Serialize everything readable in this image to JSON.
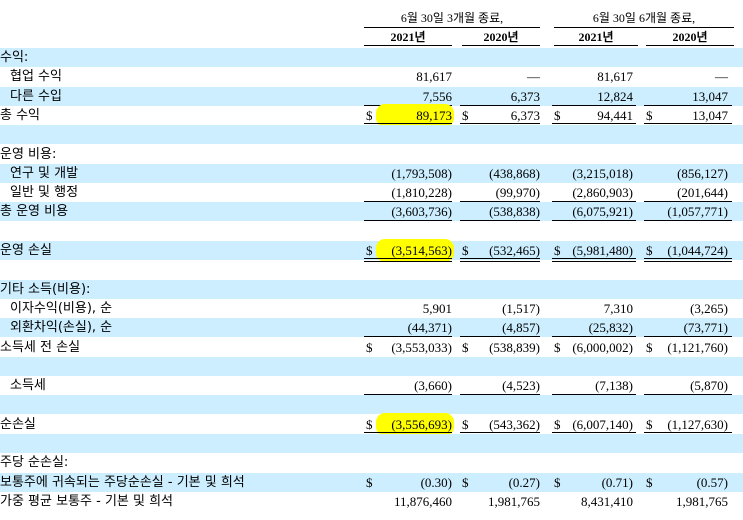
{
  "header": {
    "three_month": "6월 30일 3개월 종료,",
    "six_month": "6월 30일 6개월 종료,",
    "years": [
      "2021년",
      "2020년",
      "2021년",
      "2020년"
    ]
  },
  "rows": [
    {
      "label": "수익:",
      "indent": 0,
      "shade": true,
      "vals": [
        "",
        "",
        "",
        ""
      ],
      "dollar": false
    },
    {
      "label": "협업 수익",
      "indent": 1,
      "shade": false,
      "vals": [
        "81,617",
        "—",
        "81,617",
        "—"
      ],
      "dollar": false
    },
    {
      "label": "다른 수입",
      "indent": 1,
      "shade": true,
      "vals": [
        "7,556",
        "6,373",
        "12,824",
        "13,047"
      ],
      "dollar": false,
      "under": true
    },
    {
      "label": "총 수익",
      "indent": 0,
      "shade": false,
      "vals": [
        "89,173",
        "6,373",
        "94,441",
        "13,047"
      ],
      "dollar": true,
      "dunder": true,
      "highlight": 0
    },
    {
      "label": "",
      "indent": 0,
      "shade": true,
      "vals": [
        "",
        "",
        "",
        ""
      ],
      "dollar": false
    },
    {
      "label": "운영 비용:",
      "indent": 0,
      "shade": false,
      "vals": [
        "",
        "",
        "",
        ""
      ],
      "dollar": false
    },
    {
      "label": "연구 및 개발",
      "indent": 1,
      "shade": true,
      "vals": [
        "(1,793,508)",
        "(438,868)",
        "(3,215,018)",
        "(856,127)"
      ],
      "dollar": false
    },
    {
      "label": "일반 및 행정",
      "indent": 1,
      "shade": false,
      "vals": [
        "(1,810,228)",
        "(99,970)",
        "(2,860,903)",
        "(201,644)"
      ],
      "dollar": false,
      "under": true
    },
    {
      "label": "총 운영 비용",
      "indent": 0,
      "shade": true,
      "vals": [
        "(3,603,736)",
        "(538,838)",
        "(6,075,921)",
        "(1,057,771)"
      ],
      "dollar": false,
      "under": true
    },
    {
      "label": "",
      "indent": 0,
      "shade": false,
      "vals": [
        "",
        "",
        "",
        ""
      ],
      "dollar": false
    },
    {
      "label": "운영 손실",
      "indent": 0,
      "shade": true,
      "vals": [
        "(3,514,563)",
        "(532,465)",
        "(5,981,480)",
        "(1,044,724)"
      ],
      "dollar": true,
      "dunder": true,
      "highlight": 0
    },
    {
      "label": "",
      "indent": 0,
      "shade": false,
      "vals": [
        "",
        "",
        "",
        ""
      ],
      "dollar": false
    },
    {
      "label": "기타 소득(비용):",
      "indent": 0,
      "shade": true,
      "vals": [
        "",
        "",
        "",
        ""
      ],
      "dollar": false
    },
    {
      "label": "이자수익(비용), 순",
      "indent": 1,
      "shade": false,
      "vals": [
        "5,901",
        "(1,517)",
        "7,310",
        "(3,265)"
      ],
      "dollar": false
    },
    {
      "label": "외환차익(손실), 순",
      "indent": 1,
      "shade": true,
      "vals": [
        "(44,371)",
        "(4,857)",
        "(25,832)",
        "(73,771)"
      ],
      "dollar": false,
      "under": true
    },
    {
      "label": "소득세 전 손실",
      "indent": 0,
      "shade": false,
      "vals": [
        "(3,553,033)",
        "(538,839)",
        "(6,000,002)",
        "(1,121,760)"
      ],
      "dollar": true
    },
    {
      "label": "",
      "indent": 0,
      "shade": true,
      "vals": [
        "",
        "",
        "",
        ""
      ],
      "dollar": false
    },
    {
      "label": "소득세",
      "indent": 1,
      "shade": false,
      "vals": [
        "(3,660)",
        "(4,523)",
        "(7,138)",
        "(5,870)"
      ],
      "dollar": false,
      "under": true
    },
    {
      "label": "",
      "indent": 0,
      "shade": true,
      "vals": [
        "",
        "",
        "",
        ""
      ],
      "dollar": false
    },
    {
      "label": "순손실",
      "indent": 0,
      "shade": false,
      "vals": [
        "(3,556,693)",
        "(543,362)",
        "(6,007,140)",
        "(1,127,630)"
      ],
      "dollar": true,
      "dunder": true,
      "highlight": 0
    },
    {
      "label": "",
      "indent": 0,
      "shade": true,
      "vals": [
        "",
        "",
        "",
        ""
      ],
      "dollar": false
    },
    {
      "label": "주당 순손실:",
      "indent": 0,
      "shade": false,
      "vals": [
        "",
        "",
        "",
        ""
      ],
      "dollar": false
    },
    {
      "label": "보통주에 귀속되는 주당순손실 - 기본 및 희석",
      "indent": 0,
      "shade": true,
      "vals": [
        "(0.30)",
        "(0.27)",
        "(0.71)",
        "(0.57)"
      ],
      "dollar": true
    },
    {
      "label": "가중 평균 보통주 - 기본 및 희석",
      "indent": 0,
      "shade": false,
      "vals": [
        "11,876,460",
        "1,981,765",
        "8,431,410",
        "1,981,765"
      ],
      "dollar": false
    }
  ],
  "colors": {
    "shade": "#cceeff",
    "highlight": "#ffff00"
  }
}
